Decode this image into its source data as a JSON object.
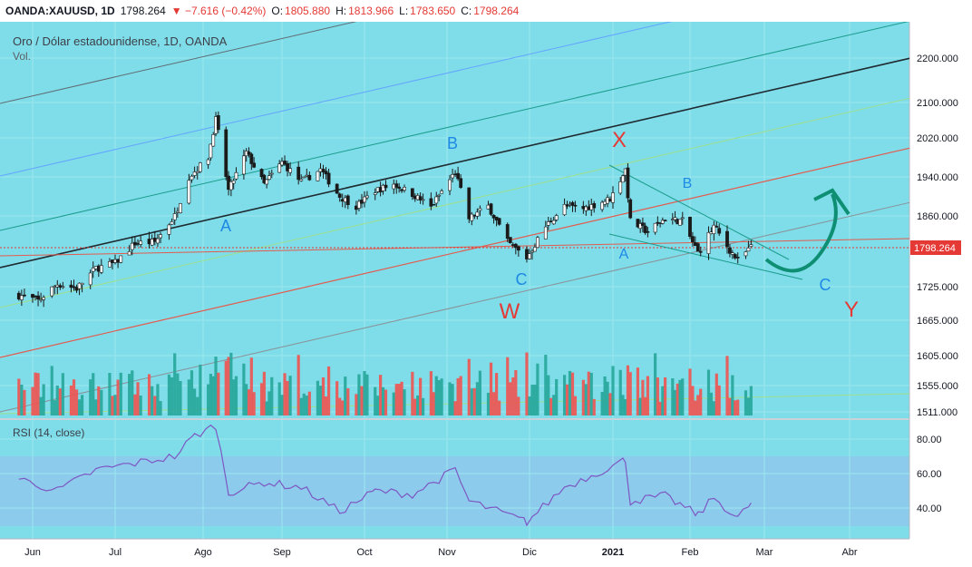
{
  "header": {
    "symbol": "OANDA:XAUUSD, 1D",
    "last": "1798.264",
    "change": "▼ −7.616 (−0.42%)",
    "o_label": "O:",
    "o_value": "1805.880",
    "h_label": "H:",
    "h_value": "1813.966",
    "l_label": "L:",
    "l_value": "1783.650",
    "c_label": "C:",
    "c_value": "1798.264"
  },
  "chart": {
    "title": "Oro / Dólar estadounidense, 1D, OANDA",
    "volume_label": "Vol.",
    "rsi_label": "RSI (14, close)",
    "price_tag": "1798.264",
    "colors": {
      "background": "#7fdde9",
      "up": "#26a69a",
      "down": "#ef5350",
      "rsi": "#7e57c2",
      "tag": "#e53935"
    }
  },
  "wave_labels": [
    {
      "text": "A",
      "color": "#1e88e5"
    },
    {
      "text": "B",
      "color": "#1e88e5"
    },
    {
      "text": "C",
      "color": "#1e88e5"
    },
    {
      "text": "W",
      "color": "#e53935"
    },
    {
      "text": "X",
      "color": "#e53935"
    },
    {
      "text": "A",
      "color": "#1e88e5"
    },
    {
      "text": "B",
      "color": "#1e88e5"
    },
    {
      "text": "C",
      "color": "#1e88e5"
    },
    {
      "text": "Y",
      "color": "#e53935"
    }
  ],
  "chart_data": {
    "type": "candlestick",
    "title": "Oro / Dólar estadounidense, 1D, OANDA",
    "x_ticks": [
      "Jun",
      "Jul",
      "Ago",
      "Sep",
      "Oct",
      "Nov",
      "Dic",
      "2021",
      "Feb",
      "Mar",
      "Abr"
    ],
    "price_ticks": [
      "2200.000",
      "2100.000",
      "2020.000",
      "1940.000",
      "1860.000",
      "1798.264",
      "1725.000",
      "1665.000",
      "1605.000",
      "1555.000",
      "1511.000"
    ],
    "rsi_ticks": [
      "80.00",
      "60.00",
      "40.00"
    ],
    "last_price": 1798.264,
    "close_path": [
      {
        "date": "2020-05-27",
        "close": 1710
      },
      {
        "date": "2020-06-03",
        "close": 1700
      },
      {
        "date": "2020-06-10",
        "close": 1730
      },
      {
        "date": "2020-06-17",
        "close": 1722
      },
      {
        "date": "2020-06-24",
        "close": 1760
      },
      {
        "date": "2020-07-01",
        "close": 1770
      },
      {
        "date": "2020-07-08",
        "close": 1808
      },
      {
        "date": "2020-07-15",
        "close": 1810
      },
      {
        "date": "2020-07-22",
        "close": 1860
      },
      {
        "date": "2020-07-27",
        "close": 1940
      },
      {
        "date": "2020-08-03",
        "close": 1980
      },
      {
        "date": "2020-08-06",
        "close": 2062
      },
      {
        "date": "2020-08-11",
        "close": 1912
      },
      {
        "date": "2020-08-18",
        "close": 1990
      },
      {
        "date": "2020-08-25",
        "close": 1925
      },
      {
        "date": "2020-09-01",
        "close": 1970
      },
      {
        "date": "2020-09-08",
        "close": 1930
      },
      {
        "date": "2020-09-15",
        "close": 1955
      },
      {
        "date": "2020-09-22",
        "close": 1900
      },
      {
        "date": "2020-09-28",
        "close": 1880
      },
      {
        "date": "2020-10-05",
        "close": 1912
      },
      {
        "date": "2020-10-12",
        "close": 1925
      },
      {
        "date": "2020-10-19",
        "close": 1905
      },
      {
        "date": "2020-10-26",
        "close": 1878
      },
      {
        "date": "2020-11-04",
        "close": 1950
      },
      {
        "date": "2020-11-09",
        "close": 1855
      },
      {
        "date": "2020-11-16",
        "close": 1880
      },
      {
        "date": "2020-11-23",
        "close": 1810
      },
      {
        "date": "2020-11-30",
        "close": 1780
      },
      {
        "date": "2020-12-07",
        "close": 1840
      },
      {
        "date": "2020-12-14",
        "close": 1880
      },
      {
        "date": "2020-12-21",
        "close": 1875
      },
      {
        "date": "2020-12-31",
        "close": 1895
      },
      {
        "date": "2021-01-06",
        "close": 1955
      },
      {
        "date": "2021-01-08",
        "close": 1850
      },
      {
        "date": "2021-01-15",
        "close": 1830
      },
      {
        "date": "2021-01-22",
        "close": 1855
      },
      {
        "date": "2021-01-29",
        "close": 1850
      },
      {
        "date": "2021-02-04",
        "close": 1790
      },
      {
        "date": "2021-02-10",
        "close": 1840
      },
      {
        "date": "2021-02-16",
        "close": 1795
      },
      {
        "date": "2021-02-19",
        "close": 1775
      },
      {
        "date": "2021-02-24",
        "close": 1800
      }
    ],
    "rsi_path": [
      {
        "date": "2020-05-27",
        "rsi": 57
      },
      {
        "date": "2020-06-10",
        "rsi": 50
      },
      {
        "date": "2020-06-24",
        "rsi": 62
      },
      {
        "date": "2020-07-08",
        "rsi": 66
      },
      {
        "date": "2020-07-22",
        "rsi": 70
      },
      {
        "date": "2020-07-29",
        "rsi": 82
      },
      {
        "date": "2020-08-06",
        "rsi": 88
      },
      {
        "date": "2020-08-11",
        "rsi": 49
      },
      {
        "date": "2020-08-25",
        "rsi": 55
      },
      {
        "date": "2020-09-08",
        "rsi": 52
      },
      {
        "date": "2020-09-22",
        "rsi": 38
      },
      {
        "date": "2020-10-05",
        "rsi": 50
      },
      {
        "date": "2020-10-19",
        "rsi": 48
      },
      {
        "date": "2020-11-04",
        "rsi": 62
      },
      {
        "date": "2020-11-09",
        "rsi": 44
      },
      {
        "date": "2020-11-30",
        "rsi": 32
      },
      {
        "date": "2020-12-14",
        "rsi": 52
      },
      {
        "date": "2021-01-06",
        "rsi": 68
      },
      {
        "date": "2021-01-08",
        "rsi": 44
      },
      {
        "date": "2021-01-22",
        "rsi": 47
      },
      {
        "date": "2021-02-04",
        "rsi": 36
      },
      {
        "date": "2021-02-10",
        "rsi": 46
      },
      {
        "date": "2021-02-19",
        "rsi": 34
      },
      {
        "date": "2021-02-24",
        "rsi": 43
      }
    ]
  }
}
